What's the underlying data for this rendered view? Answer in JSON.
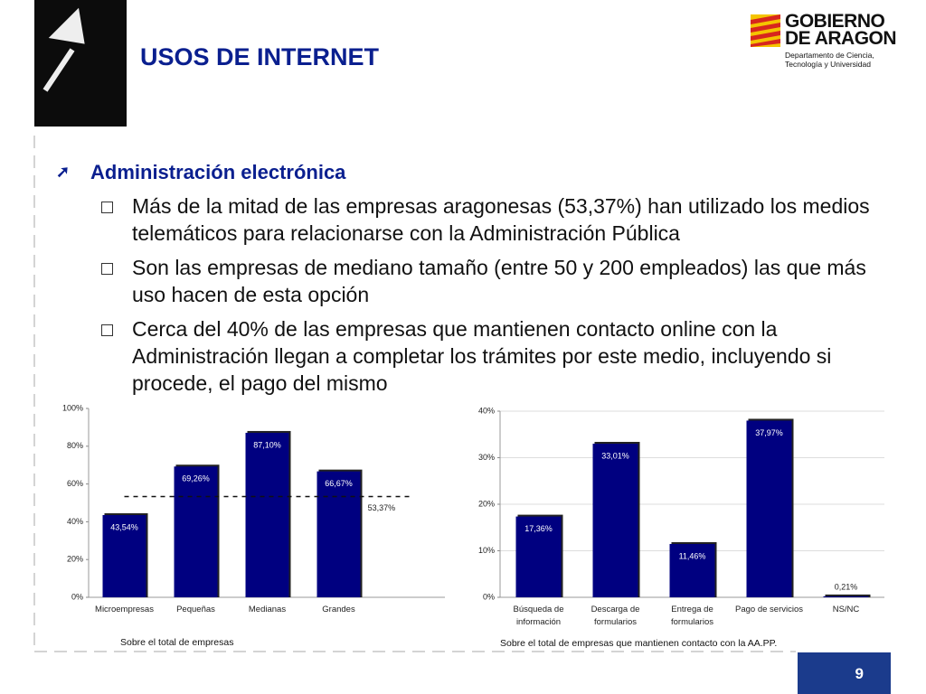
{
  "header": {
    "title": "USOS DE INTERNET",
    "logo": [
      "GOBIERNO",
      "DE ARAGON"
    ],
    "department": [
      "Departamento de Ciencia,",
      "Tecnología y Universidad"
    ]
  },
  "bullets": {
    "heading": "Administración electrónica",
    "items": [
      "Más de la mitad de las empresas aragonesas (53,37%) han utilizado los medios telemáticos para relacionarse con la Administración Pública",
      "Son las empresas de mediano tamaño (entre 50 y 200 empleados) las que más uso hacen de esta opción",
      "Cerca del 40% de las empresas que mantienen contacto online con la Administración llegan a completar los trámites por este medio, incluyendo si procede, el pago del mismo"
    ]
  },
  "chart_data": [
    {
      "type": "bar",
      "categories": [
        "Microempresas",
        "Pequeñas",
        "Medianas",
        "Grandes"
      ],
      "values": [
        43.54,
        69.26,
        87.1,
        66.67
      ],
      "value_labels": [
        "43,54%",
        "69,26%",
        "87,10%",
        "66,67%"
      ],
      "color": "#000080",
      "ylim": [
        0,
        100
      ],
      "yticks": [
        {
          "value": 0,
          "label": "0%"
        },
        {
          "value": 20,
          "label": "20%"
        },
        {
          "value": 40,
          "label": "40%"
        },
        {
          "value": 60,
          "label": "60%"
        },
        {
          "value": 80,
          "label": "80%"
        },
        {
          "value": 100,
          "label": "100%"
        }
      ],
      "grid": false,
      "reference": {
        "value": 53.37,
        "label": "53,37%"
      },
      "note": "Sobre el total de empresas"
    },
    {
      "type": "bar",
      "categories": [
        "Búsqueda de información",
        "Descarga de formularios",
        "Entrega de formularios",
        "Pago de servicios",
        "NS/NC"
      ],
      "values": [
        17.36,
        33.01,
        11.46,
        37.97,
        0.21
      ],
      "value_labels": [
        "17,36%",
        "33,01%",
        "11,46%",
        "37,97%",
        "0,21%"
      ],
      "color": "#000080",
      "ylim": [
        0,
        40
      ],
      "yticks": [
        {
          "value": 0,
          "label": "0%"
        },
        {
          "value": 10,
          "label": "10%"
        },
        {
          "value": 20,
          "label": "20%"
        },
        {
          "value": 30,
          "label": "30%"
        },
        {
          "value": 40,
          "label": "40%"
        }
      ],
      "grid": true,
      "note": "Sobre el total de empresas que mantienen contacto con la AA.PP."
    }
  ],
  "page_number": "9"
}
